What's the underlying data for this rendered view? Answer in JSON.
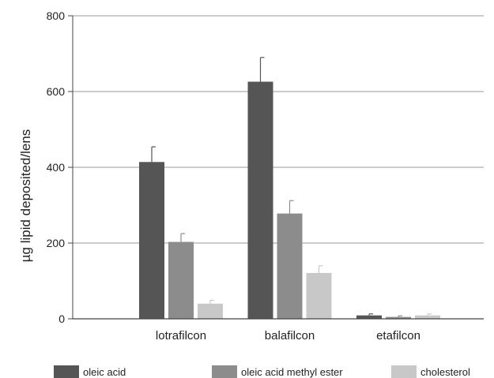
{
  "chart_data": {
    "type": "bar",
    "title": "",
    "xlabel": "",
    "ylabel": "µg lipid deposited/lens",
    "ylim": [
      0,
      800
    ],
    "yticks": [
      0,
      200,
      400,
      600,
      800
    ],
    "grid": true,
    "legend_position": "bottom",
    "categories": [
      "lotrafilcon",
      "balafilcon",
      "etafilcon"
    ],
    "series": [
      {
        "name": "oleic acid",
        "color": "#555555",
        "values": [
          414,
          626,
          9
        ],
        "errors": [
          40,
          64,
          4
        ]
      },
      {
        "name": "oleic acid methyl ester",
        "color": "#8c8c8c",
        "values": [
          203,
          278,
          5
        ],
        "errors": [
          22,
          34,
          3
        ]
      },
      {
        "name": "cholesterol",
        "color": "#c8c8c8",
        "values": [
          40,
          121,
          9
        ],
        "errors": [
          9,
          19,
          4
        ]
      }
    ]
  }
}
